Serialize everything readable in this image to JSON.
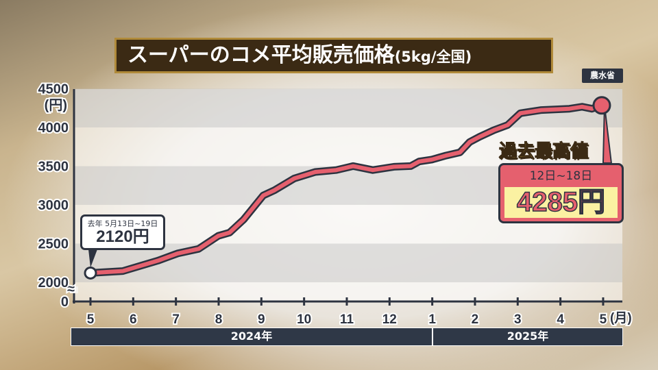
{
  "title": "スーパーのコメ平均販売価格",
  "title_sub": "(5kg/全国)",
  "source": "農水省",
  "chart_data": {
    "type": "line",
    "title": "スーパーのコメ平均販売価格(5kg/全国)",
    "ylabel": "(円)",
    "ylim": [
      2000,
      4500
    ],
    "y_axis_break": true,
    "yticks": [
      "4500",
      "4000",
      "3500",
      "3000",
      "2500",
      "2000",
      "0"
    ],
    "xticks": [
      "5",
      "6",
      "7",
      "8",
      "9",
      "10",
      "11",
      "12",
      "1",
      "2",
      "3",
      "4",
      "5"
    ],
    "x_unit": "(月)",
    "years": [
      {
        "label": "2024年"
      },
      {
        "label": "2025年"
      }
    ],
    "grid": "alternating horizontal bands",
    "colors": {
      "line": "#e5606e",
      "outline": "#2d3340"
    },
    "series": [
      {
        "points": [
          [
            "2024-05-13",
            2120
          ],
          [
            "2024-06-05",
            2145
          ],
          [
            "2024-06-30",
            2280
          ],
          [
            "2024-07-14",
            2373
          ],
          [
            "2024-07-29",
            2432
          ],
          [
            "2024-08-12",
            2600
          ],
          [
            "2024-08-20",
            2642
          ],
          [
            "2024-08-30",
            2810
          ],
          [
            "2024-09-13",
            3122
          ],
          [
            "2024-09-21",
            3189
          ],
          [
            "2024-10-05",
            3341
          ],
          [
            "2024-10-20",
            3425
          ],
          [
            "2024-11-04",
            3450
          ],
          [
            "2024-11-16",
            3501
          ],
          [
            "2024-11-30",
            3450
          ],
          [
            "2024-12-15",
            3492
          ],
          [
            "2024-12-27",
            3501
          ],
          [
            "2025-01-02",
            3560
          ],
          [
            "2025-01-11",
            3585
          ],
          [
            "2025-01-21",
            3636
          ],
          [
            "2025-01-31",
            3678
          ],
          [
            "2025-02-07",
            3812
          ],
          [
            "2025-02-14",
            3880
          ],
          [
            "2025-02-24",
            3964
          ],
          [
            "2025-03-06",
            4031
          ],
          [
            "2025-03-15",
            4183
          ],
          [
            "2025-03-30",
            4225
          ],
          [
            "2025-04-19",
            4242
          ],
          [
            "2025-04-28",
            4267
          ],
          [
            "2025-05-05",
            4242
          ],
          [
            "2025-05-12",
            4285
          ]
        ]
      }
    ],
    "annotations": {
      "start": {
        "date": "去年 5月13日~19日",
        "value": "2120円"
      },
      "end": {
        "badge": "過去最高値",
        "date": "12日~18日",
        "value": "4285円"
      }
    }
  }
}
